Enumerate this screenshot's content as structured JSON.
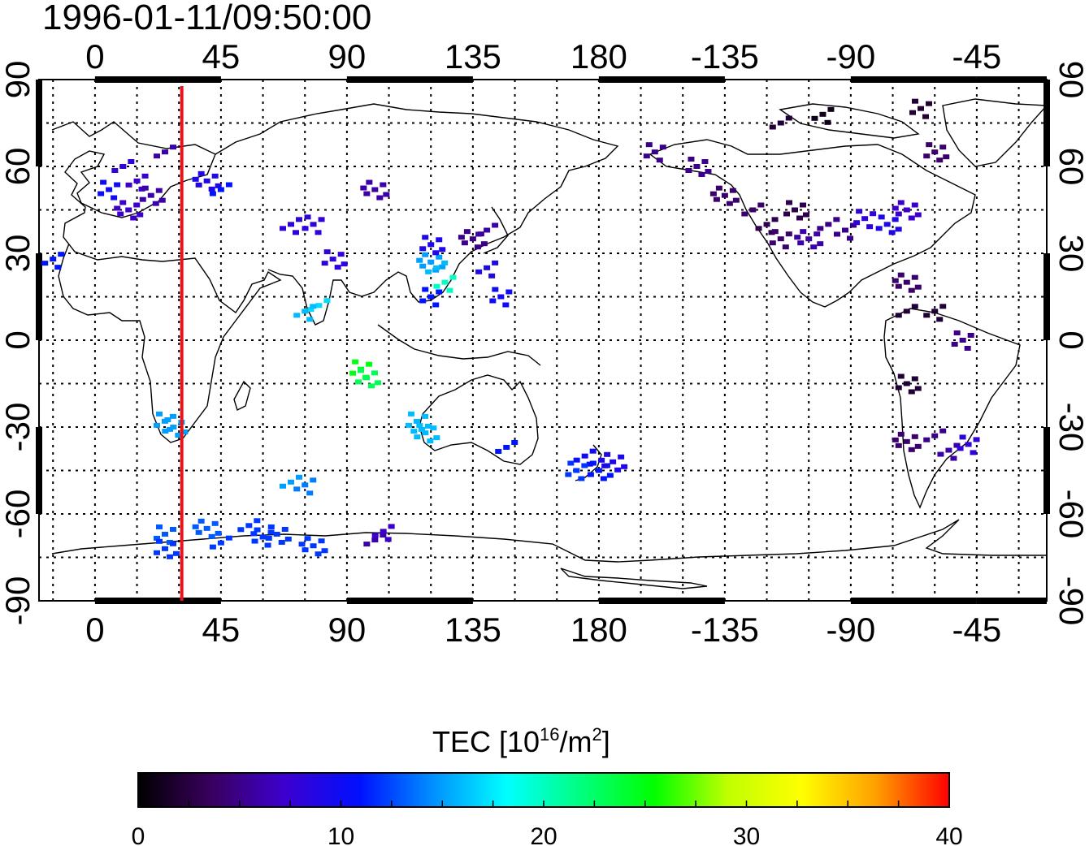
{
  "title": "1996-01-11/09:50:00",
  "map": {
    "lon_ticks": [
      "0",
      "45",
      "90",
      "135",
      "180",
      "-135",
      "-90",
      "-45"
    ],
    "lat_ticks": [
      "90",
      "60",
      "30",
      "0",
      "-30",
      "-60",
      "-90"
    ],
    "terminator_color": "#e8141b",
    "terminator_lon": 31
  },
  "colorbar": {
    "label_main": "TEC  [10",
    "label_sup": "16",
    "label_unit": "/m",
    "label_sup2": "2",
    "label_close": "]",
    "ticks": [
      "0",
      "10",
      "20",
      "30",
      "40"
    ],
    "range": [
      0,
      40
    ],
    "colormap": [
      "#000000",
      "#3a0060",
      "#3c00d0",
      "#0010ff",
      "#0090ff",
      "#00ffff",
      "#00ff80",
      "#00ff00",
      "#c0ff00",
      "#ffff00",
      "#ffa000",
      "#ff0000"
    ]
  },
  "chart_data": {
    "type": "heatmap",
    "variable": "TEC",
    "unit": "10^16/m^2",
    "x_range_lon": [
      -20,
      340
    ],
    "y_range_lat": [
      -90,
      90
    ],
    "observations": [
      {
        "lon": 10,
        "lat": 60,
        "tec": 8
      },
      {
        "lon": 15,
        "lat": 55,
        "tec": 7
      },
      {
        "lon": 5,
        "lat": 52,
        "tec": 10
      },
      {
        "lon": 20,
        "lat": 50,
        "tec": 6
      },
      {
        "lon": 12,
        "lat": 45,
        "tec": 7
      },
      {
        "lon": 25,
        "lat": 65,
        "tec": 6
      },
      {
        "lon": -15,
        "lat": 28,
        "tec": 11
      },
      {
        "lon": 25,
        "lat": -28,
        "tec": 15
      },
      {
        "lon": 28,
        "lat": -30,
        "tec": 15
      },
      {
        "lon": 40,
        "lat": 55,
        "tec": 9
      },
      {
        "lon": 45,
        "lat": 52,
        "tec": 11
      },
      {
        "lon": 70,
        "lat": 40,
        "tec": 8
      },
      {
        "lon": 78,
        "lat": 40,
        "tec": 8
      },
      {
        "lon": 85,
        "lat": 28,
        "tec": 8
      },
      {
        "lon": 100,
        "lat": 52,
        "tec": 6
      },
      {
        "lon": 80,
        "lat": 12,
        "tec": 17
      },
      {
        "lon": 75,
        "lat": 10,
        "tec": 16
      },
      {
        "lon": 95,
        "lat": -10,
        "tec": 25
      },
      {
        "lon": 97,
        "lat": -13,
        "tec": 23
      },
      {
        "lon": 120,
        "lat": 27,
        "tec": 15
      },
      {
        "lon": 122,
        "lat": 25,
        "tec": 16
      },
      {
        "lon": 125,
        "lat": 20,
        "tec": 20
      },
      {
        "lon": 120,
        "lat": 15,
        "tec": 11
      },
      {
        "lon": 120,
        "lat": 33,
        "tec": 9
      },
      {
        "lon": 135,
        "lat": 35,
        "tec": 5
      },
      {
        "lon": 140,
        "lat": 38,
        "tec": 6
      },
      {
        "lon": 140,
        "lat": 25,
        "tec": 9
      },
      {
        "lon": 145,
        "lat": 15,
        "tec": 10
      },
      {
        "lon": 115,
        "lat": -28,
        "tec": 16
      },
      {
        "lon": 118,
        "lat": -32,
        "tec": 16
      },
      {
        "lon": 147,
        "lat": -37,
        "tec": 11
      },
      {
        "lon": 175,
        "lat": -40,
        "tec": 10
      },
      {
        "lon": 172,
        "lat": -45,
        "tec": 12
      },
      {
        "lon": 180,
        "lat": -45,
        "tec": 11
      },
      {
        "lon": 185,
        "lat": -42,
        "tec": 9
      },
      {
        "lon": 70,
        "lat": -49,
        "tec": 15
      },
      {
        "lon": 75,
        "lat": -50,
        "tec": 14
      },
      {
        "lon": 25,
        "lat": -67,
        "tec": 13
      },
      {
        "lon": 25,
        "lat": -72,
        "tec": 12
      },
      {
        "lon": 40,
        "lat": -65,
        "tec": 13
      },
      {
        "lon": 45,
        "lat": -70,
        "tec": 12
      },
      {
        "lon": 55,
        "lat": -64,
        "tec": 12
      },
      {
        "lon": 60,
        "lat": -68,
        "tec": 12
      },
      {
        "lon": 65,
        "lat": -67,
        "tec": 12
      },
      {
        "lon": 78,
        "lat": -71,
        "tec": 12
      },
      {
        "lon": 100,
        "lat": -69,
        "tec": 6
      },
      {
        "lon": 103,
        "lat": -66,
        "tec": 7
      },
      {
        "lon": 200,
        "lat": 65,
        "tec": 5
      },
      {
        "lon": 215,
        "lat": 60,
        "tec": 5
      },
      {
        "lon": 225,
        "lat": 50,
        "tec": 4
      },
      {
        "lon": 235,
        "lat": 45,
        "tec": 4
      },
      {
        "lon": 240,
        "lat": 40,
        "tec": 3
      },
      {
        "lon": 245,
        "lat": 35,
        "tec": 4
      },
      {
        "lon": 250,
        "lat": 45,
        "tec": 3
      },
      {
        "lon": 255,
        "lat": 35,
        "tec": 6
      },
      {
        "lon": 262,
        "lat": 40,
        "tec": 5
      },
      {
        "lon": 268,
        "lat": 38,
        "tec": 5
      },
      {
        "lon": 275,
        "lat": 42,
        "tec": 8
      },
      {
        "lon": 283,
        "lat": 40,
        "tec": 9
      },
      {
        "lon": 290,
        "lat": 45,
        "tec": 7
      },
      {
        "lon": 245,
        "lat": 75,
        "tec": 2
      },
      {
        "lon": 260,
        "lat": 78,
        "tec": 1
      },
      {
        "lon": 295,
        "lat": 80,
        "tec": 2
      },
      {
        "lon": 300,
        "lat": 65,
        "tec": 4
      },
      {
        "lon": 290,
        "lat": 20,
        "tec": 4
      },
      {
        "lon": 290,
        "lat": 10,
        "tec": 2
      },
      {
        "lon": 300,
        "lat": 10,
        "tec": 2
      },
      {
        "lon": 310,
        "lat": 0,
        "tec": 5
      },
      {
        "lon": 290,
        "lat": -15,
        "tec": 2
      },
      {
        "lon": 290,
        "lat": -35,
        "tec": 4
      },
      {
        "lon": 300,
        "lat": -33,
        "tec": 5
      },
      {
        "lon": 305,
        "lat": -38,
        "tec": 6
      },
      {
        "lon": 312,
        "lat": -36,
        "tec": 8
      }
    ]
  }
}
